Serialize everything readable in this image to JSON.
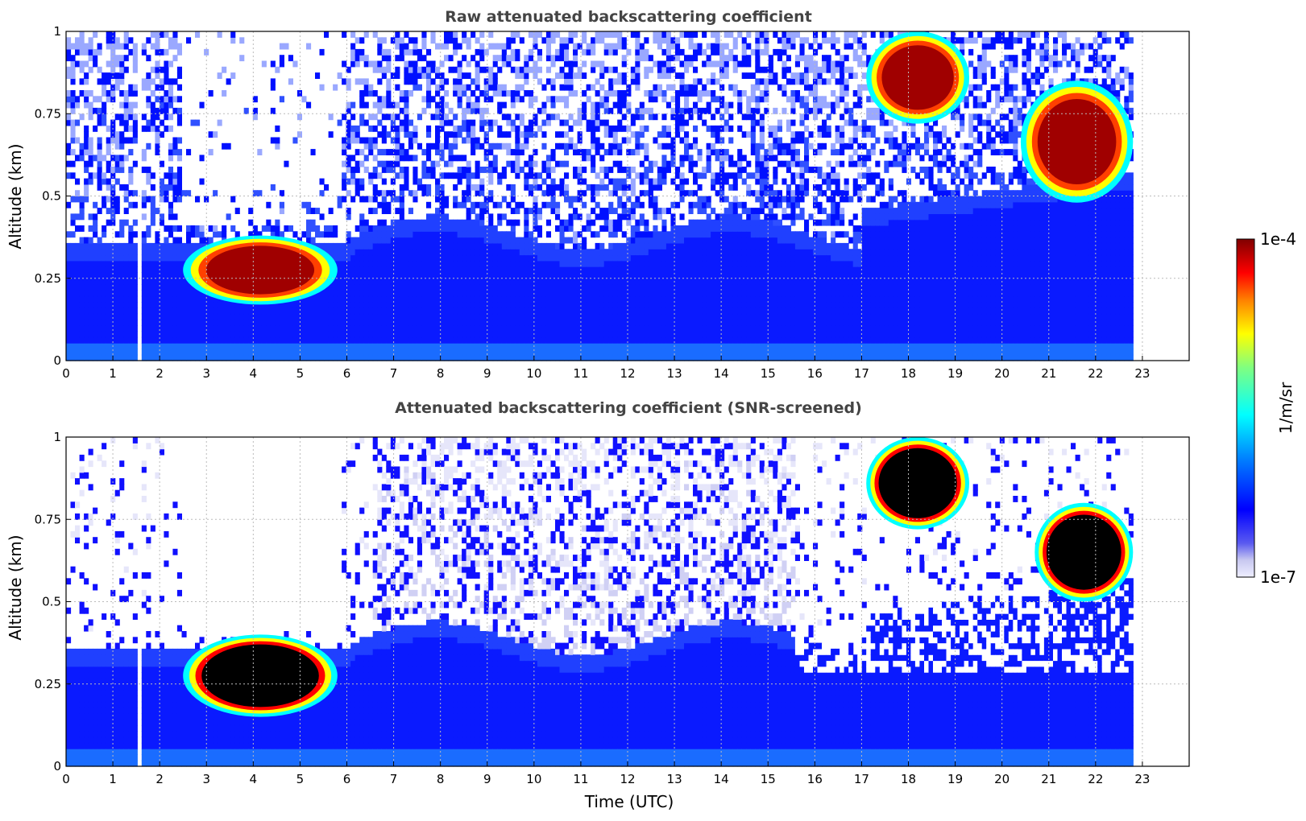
{
  "chart_data": [
    {
      "type": "heatmap",
      "title": "Raw attenuated backscattering coefficient",
      "xlabel": "",
      "ylabel": "Altitude (km)",
      "xlim": [
        0,
        24
      ],
      "ylim": [
        0,
        1
      ],
      "xticks": [
        "0",
        "1",
        "2",
        "3",
        "4",
        "5",
        "6",
        "7",
        "8",
        "9",
        "10",
        "11",
        "12",
        "13",
        "14",
        "15",
        "16",
        "17",
        "18",
        "19",
        "20",
        "21",
        "22",
        "23"
      ],
      "yticks": [
        "0",
        "0.25",
        "0.5",
        "0.75",
        "1"
      ],
      "grid": true,
      "data_gaps_hours": [
        [
          1.45,
          1.55
        ],
        [
          22.8,
          24
        ]
      ],
      "features": [
        {
          "label": "low cloud layer",
          "x": [
            2.5,
            5.8
          ],
          "y": [
            0.17,
            0.38
          ],
          "intensity": "high"
        },
        {
          "label": "upper cloud",
          "x": [
            17.1,
            19.3
          ],
          "y": [
            0.72,
            1.0
          ],
          "intensity": "high"
        },
        {
          "label": "upper cloud",
          "x": [
            20.4,
            22.8
          ],
          "y": [
            0.48,
            0.85
          ],
          "intensity": "high"
        }
      ]
    },
    {
      "type": "heatmap",
      "title": "Attenuated backscattering coefficient (SNR-screened)",
      "xlabel": "Time (UTC)",
      "ylabel": "Altitude (km)",
      "xlim": [
        0,
        24
      ],
      "ylim": [
        0,
        1
      ],
      "xticks": [
        "0",
        "1",
        "2",
        "3",
        "4",
        "5",
        "6",
        "7",
        "8",
        "9",
        "10",
        "11",
        "12",
        "13",
        "14",
        "15",
        "16",
        "17",
        "18",
        "19",
        "20",
        "21",
        "22",
        "23"
      ],
      "yticks": [
        "0",
        "0.25",
        "0.5",
        "0.75",
        "1"
      ],
      "grid": true,
      "data_gaps_hours": [
        [
          1.45,
          1.55
        ],
        [
          22.8,
          24
        ]
      ],
      "features": [
        {
          "label": "low cloud layer (saturated)",
          "x": [
            2.5,
            5.8
          ],
          "y": [
            0.15,
            0.4
          ],
          "intensity": "saturated"
        },
        {
          "label": "upper cloud (saturated)",
          "x": [
            17.1,
            19.3
          ],
          "y": [
            0.72,
            1.0
          ],
          "intensity": "saturated"
        },
        {
          "label": "upper cloud (saturated)",
          "x": [
            20.7,
            22.8
          ],
          "y": [
            0.5,
            0.8
          ],
          "intensity": "saturated"
        }
      ]
    }
  ],
  "colorbar": {
    "label": "1/m/sr",
    "max_label": "1e-4",
    "min_label": "1e-7",
    "scale": "log",
    "colormap": "jet"
  }
}
